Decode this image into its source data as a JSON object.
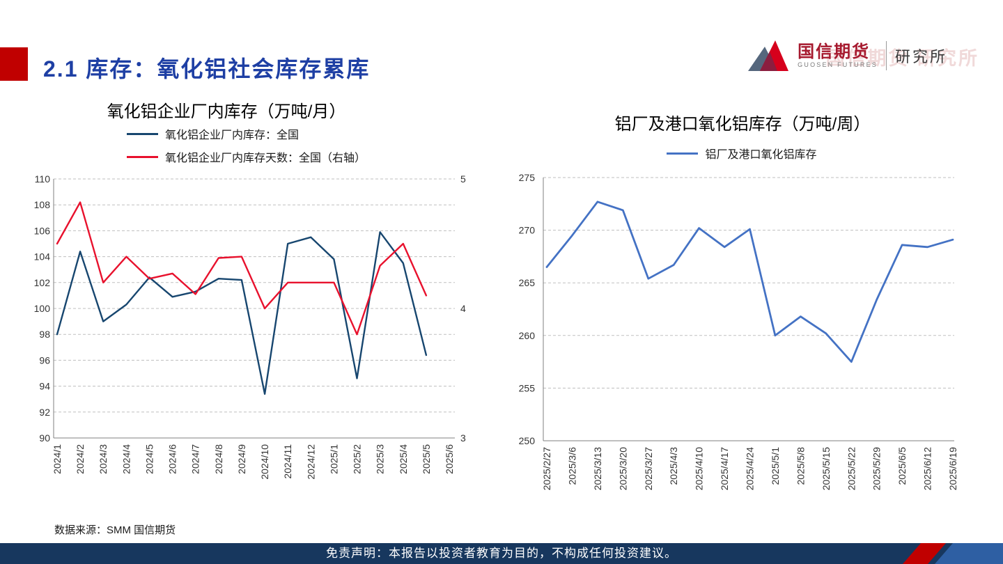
{
  "page": {
    "section_title": "2.1 库存：氧化铝社会库存累库",
    "data_source": "数据来源：SMM 国信期货",
    "disclaimer": "免责声明：本报告以投资者教育为目的，不构成任何投资建议。"
  },
  "logo": {
    "company": "国信期货",
    "company_en": "GUOSEN FUTURES",
    "department": "研究所",
    "watermark": "国信期货 研究所"
  },
  "colors": {
    "title-blue": "#1E3FA4",
    "accent-red": "#C00000",
    "footer-navy": "#17375E",
    "logo-red": "#A6192E",
    "grid-gray": "#BFBFBF"
  },
  "chart_data": [
    {
      "type": "line",
      "title": "氧化铝企业厂内库存（万吨/月）",
      "legend_position": "top-left",
      "grid": "dashed-horizontal",
      "categories": [
        "2024/1",
        "2024/2",
        "2024/3",
        "2024/4",
        "2024/5",
        "2024/6",
        "2024/7",
        "2024/8",
        "2024/9",
        "2024/10",
        "2024/11",
        "2024/12",
        "2025/1",
        "2025/2",
        "2025/3",
        "2025/4",
        "2025/5",
        "2025/6"
      ],
      "left_axis": {
        "min": 90,
        "max": 110,
        "step": 2
      },
      "right_axis": {
        "min": 3,
        "max": 5,
        "step": 1
      },
      "series": [
        {
          "name": "氧化铝企业厂内库存：全国",
          "axis": "left",
          "color": "#17466F",
          "values": [
            98.0,
            104.4,
            99.0,
            100.3,
            102.4,
            100.9,
            101.3,
            102.3,
            102.2,
            93.4,
            105.0,
            105.5,
            103.8,
            94.6,
            105.9,
            103.5,
            96.4,
            null
          ]
        },
        {
          "name": "氧化铝企业厂内库存天数：全国（右轴）",
          "axis": "right",
          "color": "#E8112D",
          "values": [
            4.5,
            4.82,
            4.2,
            4.4,
            4.23,
            4.27,
            4.11,
            4.39,
            4.4,
            4.0,
            4.2,
            4.2,
            4.2,
            3.8,
            4.33,
            4.5,
            4.1,
            null
          ]
        }
      ]
    },
    {
      "type": "line",
      "title": "铝厂及港口氧化铝库存（万吨/周）",
      "legend_position": "top-center",
      "grid": "dashed-horizontal",
      "categories": [
        "2025/2/27",
        "2025/3/6",
        "2025/3/13",
        "2025/3/20",
        "2025/3/27",
        "2025/4/3",
        "2025/4/10",
        "2025/4/17",
        "2025/4/24",
        "2025/5/1",
        "2025/5/8",
        "2025/5/15",
        "2025/5/22",
        "2025/5/29",
        "2025/6/5",
        "2025/6/12",
        "2025/6/19"
      ],
      "left_axis": {
        "min": 250,
        "max": 275,
        "step": 5
      },
      "series": [
        {
          "name": "铝厂及港口氧化铝库存",
          "axis": "left",
          "color": "#4472C4",
          "values": [
            266.5,
            269.5,
            272.7,
            271.9,
            265.4,
            266.7,
            270.2,
            268.4,
            270.1,
            260.0,
            261.8,
            260.2,
            257.5,
            263.4,
            268.6,
            268.4,
            269.1
          ]
        }
      ]
    }
  ]
}
